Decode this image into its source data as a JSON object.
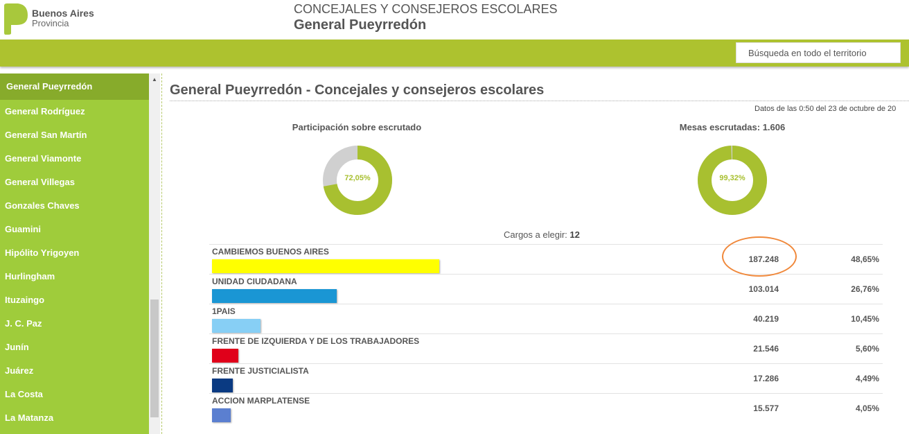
{
  "header": {
    "brand_line1": "Buenos Aires",
    "brand_line2": "Provincia",
    "title": "CONCEJALES Y CONSEJEROS ESCOLARES",
    "subtitle": "General Pueyrredón",
    "search_label": "Búsqueda en todo el territorio"
  },
  "sidebar": {
    "items": [
      {
        "label": "General Pueyrredón",
        "active": true
      },
      {
        "label": "General Rodríguez"
      },
      {
        "label": "General San Martín"
      },
      {
        "label": "General Viamonte"
      },
      {
        "label": "General Villegas"
      },
      {
        "label": "Gonzales Chaves"
      },
      {
        "label": "Guamini"
      },
      {
        "label": "Hipólito Yrigoyen"
      },
      {
        "label": "Hurlingham"
      },
      {
        "label": "Ituzaingo"
      },
      {
        "label": "J. C. Paz"
      },
      {
        "label": "Junín"
      },
      {
        "label": "Juárez"
      },
      {
        "label": "La Costa"
      },
      {
        "label": "La Matanza"
      }
    ]
  },
  "main": {
    "title": "General Pueyrredón - Concejales y consejeros escolares",
    "updated": "Datos de las 0:50 del 23 de octubre de 20",
    "participacion": {
      "title": "Participación sobre escrutado",
      "label": "72,05%",
      "value": 72.05
    },
    "mesas": {
      "title": "Mesas escrutadas: 1.606",
      "label": "99,32%",
      "value": 99.32
    },
    "cargos_label": "Cargos a elegir:",
    "cargos_value": "12",
    "parties": [
      {
        "name": "CAMBIEMOS BUENOS AIRES",
        "votes": "187.248",
        "pct": "48,65%",
        "share": 48.65,
        "color": "#ffff00"
      },
      {
        "name": "UNIDAD CIUDADANA",
        "votes": "103.014",
        "pct": "26,76%",
        "share": 26.76,
        "color": "#1a96d4"
      },
      {
        "name": "1PAIS",
        "votes": "40.219",
        "pct": "10,45%",
        "share": 10.45,
        "color": "#87cff5"
      },
      {
        "name": "FRENTE DE IZQUIERDA Y DE LOS TRABAJADORES",
        "votes": "21.546",
        "pct": "5,60%",
        "share": 5.6,
        "color": "#e0001a"
      },
      {
        "name": "FRENTE JUSTICIALISTA",
        "votes": "17.286",
        "pct": "4,49%",
        "share": 4.49,
        "color": "#0a3a82"
      },
      {
        "name": "ACCION MARPLATENSE",
        "votes": "15.577",
        "pct": "4,05%",
        "share": 4.05,
        "color": "#5b7fd0"
      }
    ]
  }
}
